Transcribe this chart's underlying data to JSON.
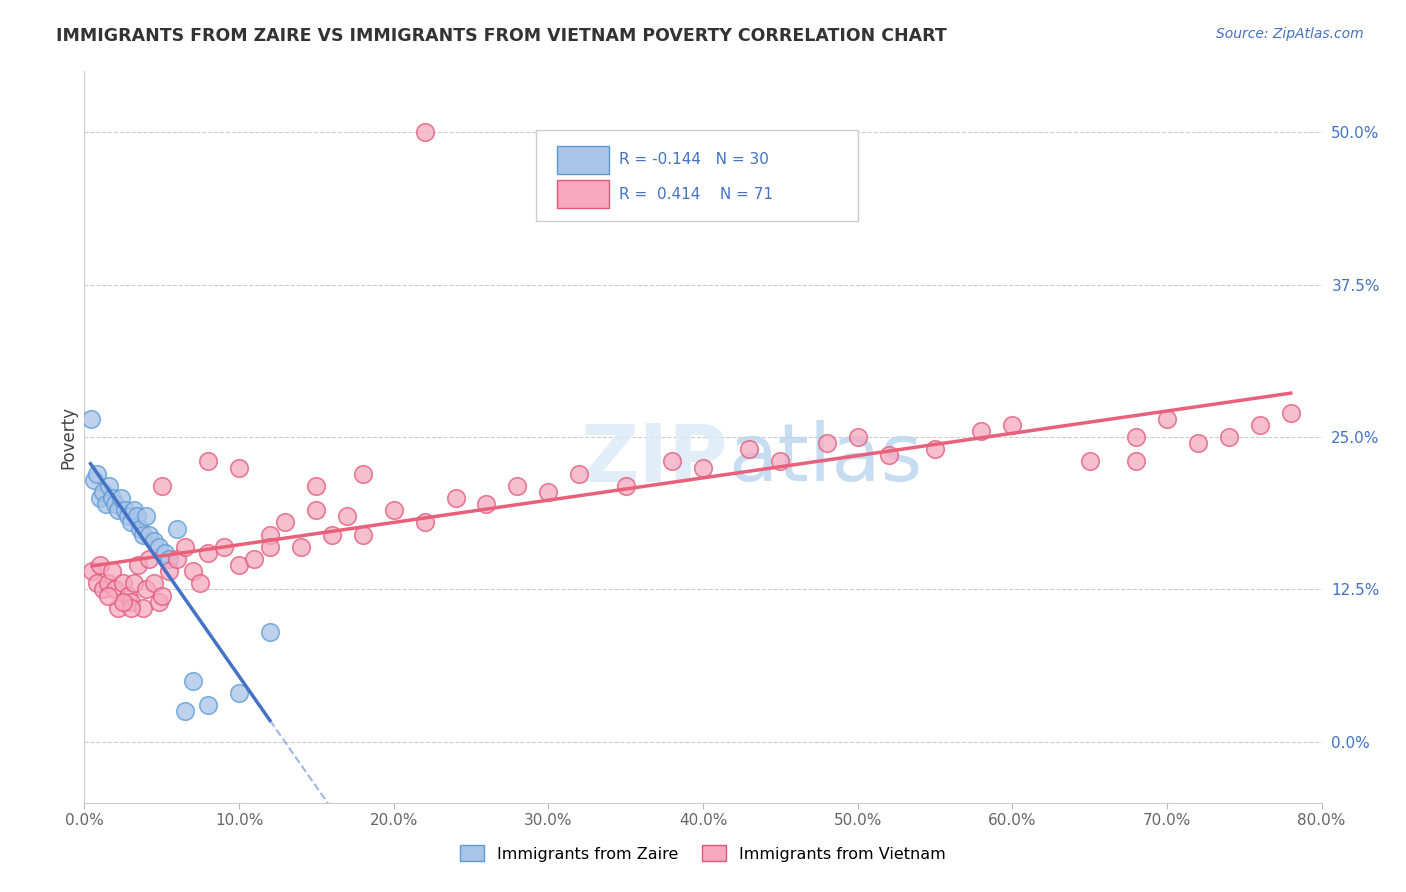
{
  "title": "IMMIGRANTS FROM ZAIRE VS IMMIGRANTS FROM VIETNAM POVERTY CORRELATION CHART",
  "source": "Source: ZipAtlas.com",
  "ylabel": "Poverty",
  "ytick_values": [
    0.0,
    12.5,
    25.0,
    37.5,
    50.0
  ],
  "xmin": 0.0,
  "xmax": 80.0,
  "ymin": -5.0,
  "ymax": 55.0,
  "legend_r1": "-0.144",
  "legend_n1": "30",
  "legend_r2": "0.414",
  "legend_n2": "71",
  "color_zaire": "#aac4e8",
  "color_vietnam": "#f5a8c0",
  "color_zaire_line": "#4472c4",
  "color_vietnam_line": "#e8607a",
  "color_zaire_dark": "#5b9bd5",
  "color_vietnam_dark": "#e05878",
  "background": "#ffffff",
  "grid_color": "#cccccc",
  "zaire_x": [
    0.4,
    0.6,
    0.8,
    1.0,
    1.2,
    1.4,
    1.6,
    1.8,
    2.0,
    2.2,
    2.4,
    2.6,
    2.8,
    3.0,
    3.2,
    3.4,
    3.6,
    3.8,
    4.0,
    4.2,
    4.5,
    4.8,
    5.2,
    5.5,
    6.0,
    6.5,
    7.0,
    8.0,
    10.0,
    12.0
  ],
  "zaire_y": [
    26.5,
    21.5,
    22.0,
    20.0,
    20.5,
    19.5,
    21.0,
    20.0,
    19.5,
    19.0,
    20.0,
    19.0,
    18.5,
    18.0,
    19.0,
    18.5,
    17.5,
    17.0,
    18.5,
    17.0,
    16.5,
    16.0,
    15.5,
    15.0,
    17.5,
    2.5,
    5.0,
    3.0,
    4.0,
    9.0
  ],
  "vietnam_x": [
    0.5,
    0.8,
    1.0,
    1.2,
    1.5,
    1.8,
    2.0,
    2.2,
    2.5,
    2.8,
    3.0,
    3.2,
    3.5,
    3.8,
    4.0,
    4.2,
    4.5,
    4.8,
    5.0,
    5.5,
    6.0,
    6.5,
    7.0,
    7.5,
    8.0,
    9.0,
    10.0,
    11.0,
    12.0,
    13.0,
    14.0,
    15.0,
    16.0,
    17.0,
    18.0,
    20.0,
    22.0,
    24.0,
    26.0,
    28.0,
    30.0,
    32.0,
    35.0,
    38.0,
    40.0,
    43.0,
    45.0,
    48.0,
    50.0,
    52.0,
    55.0,
    58.0,
    60.0,
    65.0,
    68.0,
    70.0,
    72.0,
    74.0,
    76.0,
    78.0,
    68.0,
    22.0,
    8.0,
    18.0,
    15.0,
    12.0,
    10.0,
    5.0,
    3.0,
    2.5,
    1.5
  ],
  "vietnam_y": [
    14.0,
    13.0,
    14.5,
    12.5,
    13.0,
    14.0,
    12.5,
    11.0,
    13.0,
    12.0,
    11.5,
    13.0,
    14.5,
    11.0,
    12.5,
    15.0,
    13.0,
    11.5,
    12.0,
    14.0,
    15.0,
    16.0,
    14.0,
    13.0,
    15.5,
    16.0,
    14.5,
    15.0,
    17.0,
    18.0,
    16.0,
    19.0,
    17.0,
    18.5,
    17.0,
    19.0,
    18.0,
    20.0,
    19.5,
    21.0,
    20.5,
    22.0,
    21.0,
    23.0,
    22.5,
    24.0,
    23.0,
    24.5,
    25.0,
    23.5,
    24.0,
    25.5,
    26.0,
    23.0,
    25.0,
    26.5,
    24.5,
    25.0,
    26.0,
    27.0,
    23.0,
    50.0,
    23.0,
    22.0,
    21.0,
    16.0,
    22.5,
    21.0,
    11.0,
    11.5,
    12.0
  ]
}
